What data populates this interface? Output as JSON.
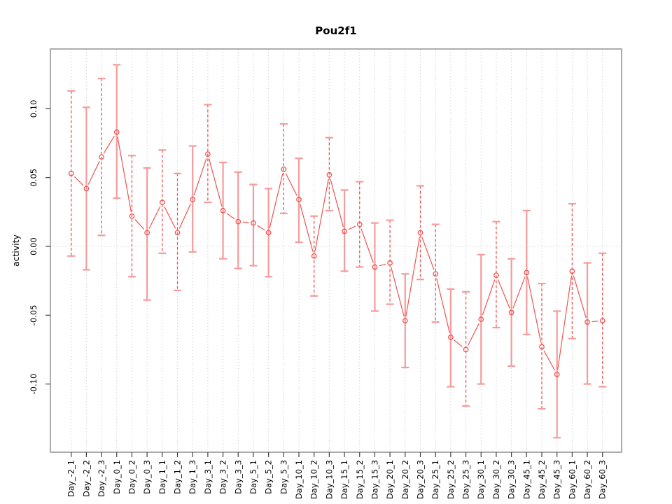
{
  "title": "Pou2f1",
  "chart_data": {
    "type": "line",
    "title": "Pou2f1",
    "xlabel": "",
    "ylabel": "activity",
    "legend": "none",
    "grid": "vertical dotted gridline at every category; dotted horizontal line at y=0 only",
    "point_style": "open red circles, gapped b-type connecting line, vertical error bars with caps",
    "ylim": [
      -0.15,
      0.143
    ],
    "ytick_labels": [
      "0.10",
      "0.05",
      "0.00",
      "-0.05",
      "-0.10"
    ],
    "ytick_values": [
      0.1,
      0.05,
      0.0,
      -0.05,
      -0.1
    ],
    "categories": [
      "Day_-2_1",
      "Day_-2_2",
      "Day_-2_3",
      "Day_0_1",
      "Day_0_2",
      "Day_0_3",
      "Day_1_1",
      "Day_1_2",
      "Day_1_3",
      "Day_3_1",
      "Day_3_2",
      "Day_3_3",
      "Day_5_1",
      "Day_5_2",
      "Day_5_3",
      "Day_10_1",
      "Day_10_2",
      "Day_10_3",
      "Day_15_1",
      "Day_15_2",
      "Day_15_3",
      "Day_20_1",
      "Day_20_2",
      "Day_20_3",
      "Day_25_1",
      "Day_25_2",
      "Day_25_3",
      "Day_30_1",
      "Day_30_2",
      "Day_30_3",
      "Day_45_1",
      "Day_45_2",
      "Day_45_3",
      "Day_60_1",
      "Day_60_2",
      "Day_60_3"
    ],
    "series": [
      {
        "name": "activity",
        "values": [
          0.053,
          0.042,
          0.065,
          0.083,
          0.022,
          0.01,
          0.032,
          0.01,
          0.034,
          0.067,
          0.026,
          0.018,
          0.017,
          0.01,
          0.056,
          0.034,
          -0.007,
          0.052,
          0.011,
          0.016,
          -0.015,
          -0.012,
          -0.054,
          0.01,
          -0.02,
          -0.066,
          -0.075,
          -0.053,
          -0.021,
          -0.048,
          -0.019,
          -0.073,
          -0.093,
          -0.018,
          -0.055,
          -0.054
        ],
        "ci_lower": [
          -0.007,
          -0.017,
          0.008,
          0.035,
          -0.022,
          -0.039,
          -0.005,
          -0.032,
          -0.004,
          0.032,
          -0.009,
          -0.016,
          -0.014,
          -0.022,
          0.024,
          0.003,
          -0.036,
          0.026,
          -0.018,
          -0.015,
          -0.047,
          -0.042,
          -0.088,
          -0.024,
          -0.055,
          -0.102,
          -0.116,
          -0.1,
          -0.059,
          -0.087,
          -0.064,
          -0.118,
          -0.139,
          -0.067,
          -0.1,
          -0.102
        ],
        "ci_upper": [
          0.113,
          0.101,
          0.122,
          0.132,
          0.066,
          0.057,
          0.07,
          0.053,
          0.073,
          0.103,
          0.061,
          0.054,
          0.045,
          0.042,
          0.089,
          0.064,
          0.022,
          0.079,
          0.041,
          0.047,
          0.017,
          0.019,
          -0.02,
          0.044,
          0.016,
          -0.031,
          -0.033,
          -0.006,
          0.018,
          -0.009,
          0.026,
          -0.027,
          -0.047,
          0.031,
          -0.012,
          -0.005
        ],
        "bar_styles": [
          "dashed",
          "solid",
          "dashed",
          "solid",
          "dashed",
          "solid",
          "dashed",
          "dashed",
          "solid",
          "dashed",
          "solid",
          "solid",
          "solid",
          "solid",
          "dashed",
          "solid",
          "dashed",
          "dashed",
          "solid",
          "dashed",
          "solid",
          "dashed",
          "solid",
          "dashed",
          "dashed",
          "solid",
          "dashed",
          "solid",
          "dashed",
          "solid",
          "solid",
          "dashed",
          "solid",
          "dashed",
          "solid",
          "dashed"
        ]
      }
    ],
    "colors": {
      "point_line_red": "#ef5350",
      "errorbar_salmon": "#f59b9b",
      "gridline_gray": "#d4d4d4",
      "box_gray": "#8a8a8a",
      "tick_black": "#404040"
    }
  }
}
